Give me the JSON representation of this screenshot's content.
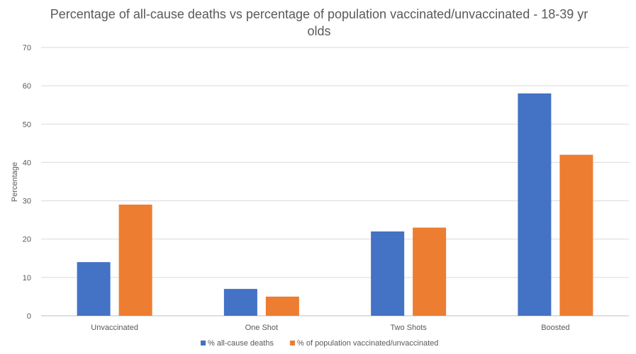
{
  "chart_data": {
    "type": "bar",
    "title": "Percentage of all-cause deaths vs percentage of population vaccinated/unvaccinated - 18-39 yr olds",
    "xlabel": "",
    "ylabel": "Percentage",
    "ylim": [
      0,
      70
    ],
    "yticks": [
      0,
      10,
      20,
      30,
      40,
      50,
      60,
      70
    ],
    "categories": [
      "Unvaccinated",
      "One Shot",
      "Two Shots",
      "Boosted"
    ],
    "series": [
      {
        "name": "% all-cause deaths",
        "values": [
          14,
          7,
          22,
          58
        ],
        "color": "#4472C4"
      },
      {
        "name": "% of population vaccinated/unvaccinated",
        "values": [
          29,
          5,
          23,
          42
        ],
        "color": "#ED7D31"
      }
    ],
    "grid": true,
    "legend": "bottom"
  }
}
